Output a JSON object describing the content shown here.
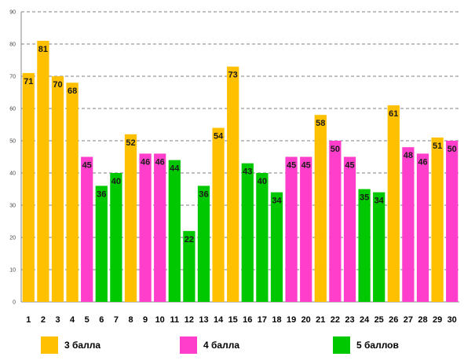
{
  "chart_data": {
    "type": "bar",
    "categories": [
      "1",
      "2",
      "3",
      "4",
      "5",
      "6",
      "7",
      "8",
      "9",
      "10",
      "11",
      "12",
      "13",
      "14",
      "15",
      "16",
      "17",
      "18",
      "19",
      "20",
      "21",
      "22",
      "23",
      "24",
      "25",
      "26",
      "27",
      "28",
      "29",
      "30"
    ],
    "values": [
      71,
      81,
      70,
      68,
      45,
      36,
      40,
      52,
      46,
      46,
      44,
      22,
      36,
      54,
      73,
      43,
      40,
      34,
      45,
      45,
      58,
      50,
      45,
      35,
      34,
      61,
      48,
      46,
      51,
      50
    ],
    "groups": [
      "3 балла",
      "3 балла",
      "3 балла",
      "3 балла",
      "4 балла",
      "5 баллов",
      "5 баллов",
      "3 балла",
      "4 балла",
      "4 балла",
      "5 баллов",
      "5 баллов",
      "5 баллов",
      "3 балла",
      "3 балла",
      "5 баллов",
      "5 баллов",
      "5 баллов",
      "4 балла",
      "4 балла",
      "3 балла",
      "4 балла",
      "4 балла",
      "5 баллов",
      "5 баллов",
      "3 балла",
      "4 балла",
      "4 балла",
      "3 балла",
      "4 балла"
    ],
    "ylim": [
      0,
      90
    ],
    "yticks": [
      0,
      10,
      20,
      30,
      40,
      50,
      60,
      70,
      80,
      90
    ],
    "grid": true,
    "legend_position": "bottom",
    "title": "",
    "xlabel": "",
    "ylabel": "",
    "series": [
      {
        "name": "3 балла",
        "color": "#FFC000"
      },
      {
        "name": "4 балла",
        "color": "#FF3FCB"
      },
      {
        "name": "5 баллов",
        "color": "#00C800"
      }
    ]
  },
  "legend": {
    "item0": "3 балла",
    "item1": "4 балла",
    "item2": "5 баллов"
  }
}
